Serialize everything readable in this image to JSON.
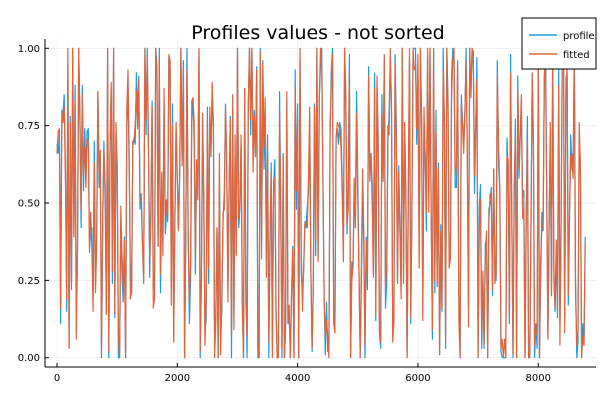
{
  "chart_data": {
    "type": "line",
    "title": "Profiles values - not sorted",
    "xlabel": "",
    "ylabel": "",
    "xlim": [
      -200,
      8960
    ],
    "ylim": [
      -0.03,
      1.03
    ],
    "x_ticks": [
      {
        "value": 0,
        "label": "0"
      },
      {
        "value": 2000,
        "label": "2000"
      },
      {
        "value": 4000,
        "label": "4000"
      },
      {
        "value": 6000,
        "label": "6000"
      },
      {
        "value": 8000,
        "label": "8000"
      }
    ],
    "y_ticks": [
      {
        "value": 0.0,
        "label": "0.00"
      },
      {
        "value": 0.25,
        "label": "0.25"
      },
      {
        "value": 0.5,
        "label": "0.50"
      },
      {
        "value": 0.75,
        "label": "0.75"
      },
      {
        "value": 1.0,
        "label": "1.00"
      }
    ],
    "grid": true,
    "legend_position": "top-right",
    "x_step": 20,
    "series": [
      {
        "name": "profile",
        "color": "#1f9be0",
        "values": []
      },
      {
        "name": "fitted",
        "color": "#e0643c",
        "values": []
      }
    ]
  }
}
